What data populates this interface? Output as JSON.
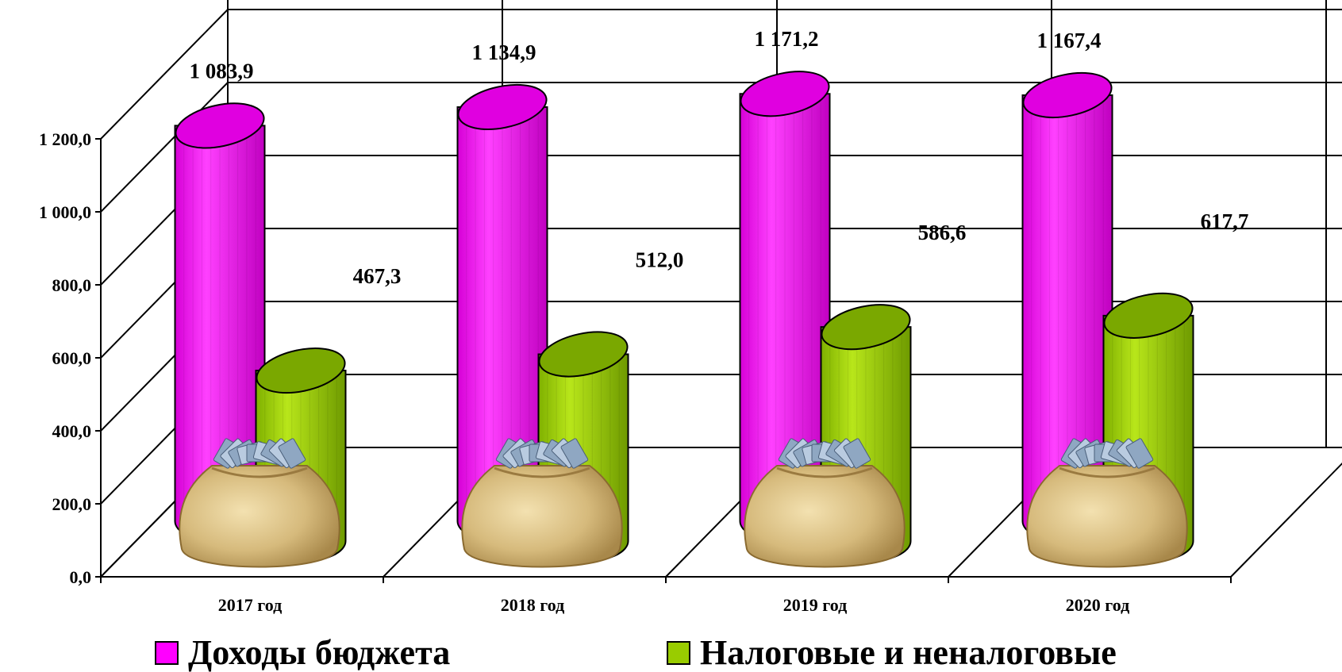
{
  "chart_data": {
    "type": "bar",
    "style": "3d-cylinder",
    "categories": [
      "2017 год",
      "2018 год",
      "2019 год",
      "2020 год"
    ],
    "series": [
      {
        "name": "Доходы бюджета",
        "color": "#ff00ff",
        "values": [
          1083.9,
          1134.9,
          1171.2,
          1167.4
        ],
        "labels": [
          "1 083,9",
          "1 134,9",
          "1 171,2",
          "1 167,4"
        ]
      },
      {
        "name": "Налоговые и неналоговые",
        "color": "#99cc00",
        "values": [
          467.3,
          512.0,
          586.6,
          617.7
        ],
        "labels": [
          "467,3",
          "512,0",
          "586,6",
          "617,7"
        ]
      }
    ],
    "yticks": [
      "0,0",
      "200,0",
      "400,0",
      "600,0",
      "800,0",
      "1 000,0",
      "1 200,0"
    ],
    "ylim": [
      0,
      1400
    ],
    "grid": true,
    "legend_position": "bottom",
    "decoration_icon": "money-bag-icon"
  }
}
